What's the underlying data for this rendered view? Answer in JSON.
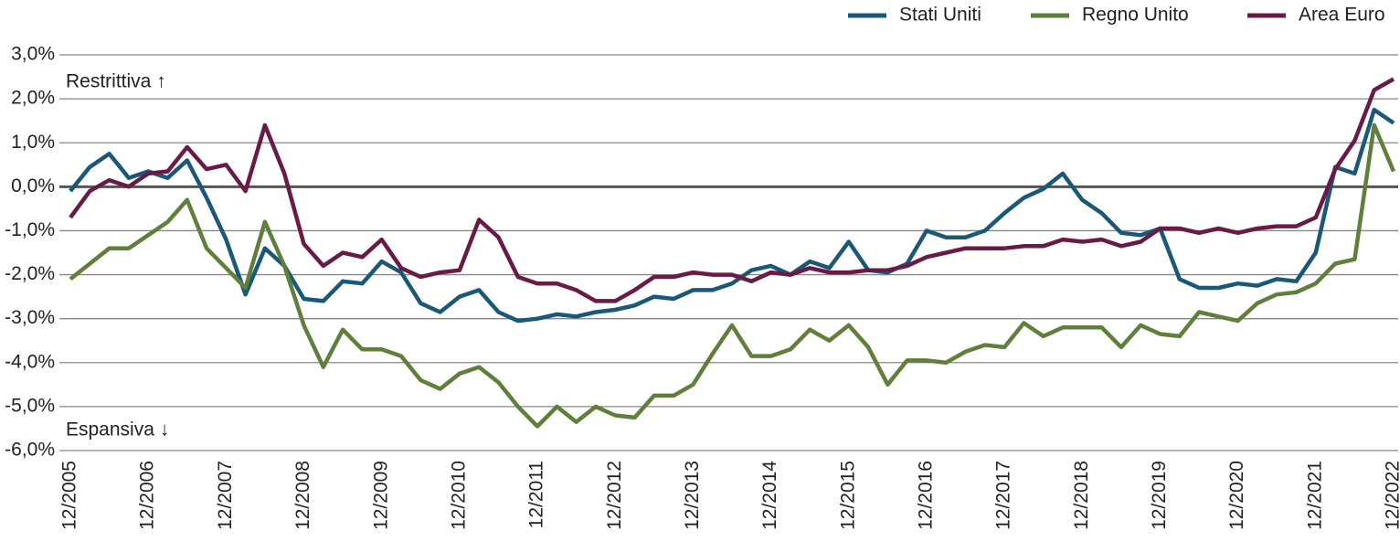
{
  "chart_data": {
    "type": "line",
    "categories": [
      "12/2005",
      null,
      null,
      null,
      "12/2006",
      null,
      null,
      null,
      "12/2007",
      null,
      null,
      null,
      "12/2008",
      null,
      null,
      null,
      "12/2009",
      null,
      null,
      null,
      "12/2010",
      null,
      null,
      null,
      "12/2011",
      null,
      null,
      null,
      "12/2012",
      null,
      null,
      null,
      "12/2013",
      null,
      null,
      null,
      "12/2014",
      null,
      null,
      null,
      "12/2015",
      null,
      null,
      null,
      "12/2016",
      null,
      null,
      null,
      "12/2017",
      null,
      null,
      null,
      "12/2018",
      null,
      null,
      null,
      "12/2019",
      null,
      null,
      null,
      "12/2020",
      null,
      null,
      null,
      "12/2021",
      null,
      null,
      null,
      "12/2022"
    ],
    "series": [
      {
        "name": "Stati Uniti",
        "color": "#1b5878",
        "values": [
          -0.1,
          0.45,
          0.75,
          0.2,
          0.35,
          0.2,
          0.6,
          -0.25,
          -1.2,
          -2.45,
          -1.4,
          -1.8,
          -2.55,
          -2.6,
          -2.15,
          -2.2,
          -1.7,
          -1.95,
          -2.65,
          -2.85,
          -2.5,
          -2.35,
          -2.85,
          -3.05,
          -3.0,
          -2.9,
          -2.95,
          -2.85,
          -2.8,
          -2.7,
          -2.5,
          -2.55,
          -2.35,
          -2.35,
          -2.2,
          -1.9,
          -1.8,
          -2.0,
          -1.7,
          -1.85,
          -1.25,
          -1.9,
          -1.95,
          -1.75,
          -1.0,
          -1.15,
          -1.15,
          -1.0,
          -0.6,
          -0.25,
          -0.05,
          0.3,
          -0.3,
          -0.6,
          -1.05,
          -1.1,
          -0.95,
          -2.1,
          -2.3,
          -2.3,
          -2.2,
          -2.25,
          -2.1,
          -2.15,
          -1.5,
          0.45,
          0.3,
          1.75,
          1.45
        ]
      },
      {
        "name": "Regno Unito",
        "color": "#5f7f3a",
        "values": [
          -2.1,
          -1.75,
          -1.4,
          -1.4,
          -1.1,
          -0.8,
          -0.3,
          -1.4,
          -1.85,
          -2.3,
          -0.8,
          -1.8,
          -3.15,
          -4.1,
          -3.25,
          -3.7,
          -3.7,
          -3.85,
          -4.4,
          -4.6,
          -4.25,
          -4.1,
          -4.45,
          -5.0,
          -5.45,
          -5.0,
          -5.35,
          -5.0,
          -5.2,
          -5.25,
          -4.75,
          -4.75,
          -4.5,
          -3.8,
          -3.15,
          -3.85,
          -3.85,
          -3.7,
          -3.25,
          -3.5,
          -3.15,
          -3.65,
          -4.5,
          -3.95,
          -3.95,
          -4.0,
          -3.75,
          -3.6,
          -3.65,
          -3.1,
          -3.4,
          -3.2,
          -3.2,
          -3.2,
          -3.65,
          -3.15,
          -3.35,
          -3.4,
          -2.85,
          -2.95,
          -3.05,
          -2.65,
          -2.45,
          -2.4,
          -2.2,
          -1.75,
          -1.65,
          1.4,
          0.35
        ]
      },
      {
        "name": "Area Euro",
        "color": "#6a1a47",
        "values": [
          -0.7,
          -0.1,
          0.15,
          0.0,
          0.3,
          0.35,
          0.9,
          0.4,
          0.5,
          -0.1,
          1.4,
          0.3,
          -1.3,
          -1.8,
          -1.5,
          -1.6,
          -1.2,
          -1.85,
          -2.05,
          -1.95,
          -1.9,
          -0.75,
          -1.15,
          -2.05,
          -2.2,
          -2.2,
          -2.35,
          -2.6,
          -2.6,
          -2.35,
          -2.05,
          -2.05,
          -1.95,
          -2.0,
          -2.0,
          -2.15,
          -1.95,
          -2.0,
          -1.85,
          -1.95,
          -1.95,
          -1.9,
          -1.9,
          -1.8,
          -1.6,
          -1.5,
          -1.4,
          -1.4,
          -1.4,
          -1.35,
          -1.35,
          -1.2,
          -1.25,
          -1.2,
          -1.35,
          -1.25,
          -0.95,
          -0.95,
          -1.05,
          -0.95,
          -1.05,
          -0.95,
          -0.9,
          -0.9,
          -0.7,
          0.4,
          1.05,
          2.2,
          2.45
        ]
      }
    ],
    "ylim": [
      -6,
      3
    ],
    "yticks": [
      {
        "value": 3,
        "label": "3,0%"
      },
      {
        "value": 2,
        "label": "2,0%"
      },
      {
        "value": 1,
        "label": "1,0%"
      },
      {
        "value": 0,
        "label": "0,0%"
      },
      {
        "value": -1,
        "label": "-1,0%"
      },
      {
        "value": -2,
        "label": "-2,0%"
      },
      {
        "value": -3,
        "label": "-3,0%"
      },
      {
        "value": -4,
        "label": "-4,0%"
      },
      {
        "value": -5,
        "label": "-5,0%"
      },
      {
        "value": -6,
        "label": "-6,0%"
      }
    ],
    "grid": true,
    "legend": "top-right",
    "annotations": [
      "Restrittiva ↑",
      "Espansiva ↓"
    ]
  }
}
